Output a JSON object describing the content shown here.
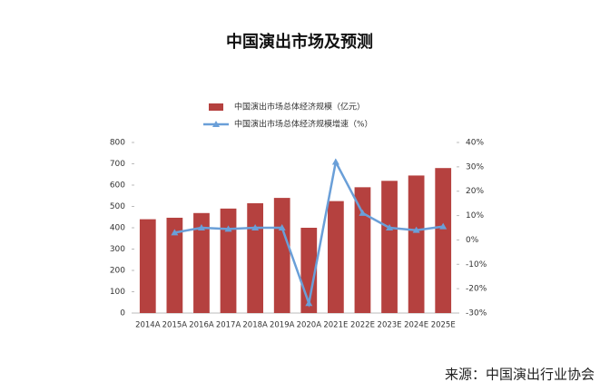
{
  "title": "中国演出市场及预测",
  "source": "来源：中国演出行业协会",
  "chart_data": {
    "type": "bar-line",
    "categories": [
      "2014A",
      "2015A",
      "2016A",
      "2017A",
      "2018A",
      "2019A",
      "2020A",
      "2021E",
      "2022E",
      "2023E",
      "2024E",
      "2025E"
    ],
    "series": [
      {
        "name": "中国演出市场总体经济规模（亿元）",
        "type": "bar",
        "color": "#b5413f",
        "values": [
          440,
          447,
          469,
          490,
          515,
          540,
          400,
          525,
          590,
          620,
          645,
          680
        ]
      },
      {
        "name": "中国演出市场总体经济规模增速（%）",
        "type": "line",
        "axis": "y2",
        "color": "#6a9fd8",
        "values": [
          null,
          3,
          5,
          4.5,
          5,
          5,
          -26,
          32,
          11,
          5,
          4,
          5.5
        ]
      }
    ],
    "ylim": [
      0,
      800
    ],
    "yticks": [
      0,
      100,
      200,
      300,
      400,
      500,
      600,
      700,
      800
    ],
    "y2lim": [
      -30,
      40
    ],
    "y2ticks": [
      {
        "value": -30,
        "label": "-30%"
      },
      {
        "value": -20,
        "label": "-20%"
      },
      {
        "value": -10,
        "label": "-10%"
      },
      {
        "value": 0,
        "label": "0%"
      },
      {
        "value": 10,
        "label": "10%"
      },
      {
        "value": 20,
        "label": "20%"
      },
      {
        "value": 30,
        "label": "30%"
      },
      {
        "value": 40,
        "label": "40%"
      }
    ],
    "grid": false
  }
}
